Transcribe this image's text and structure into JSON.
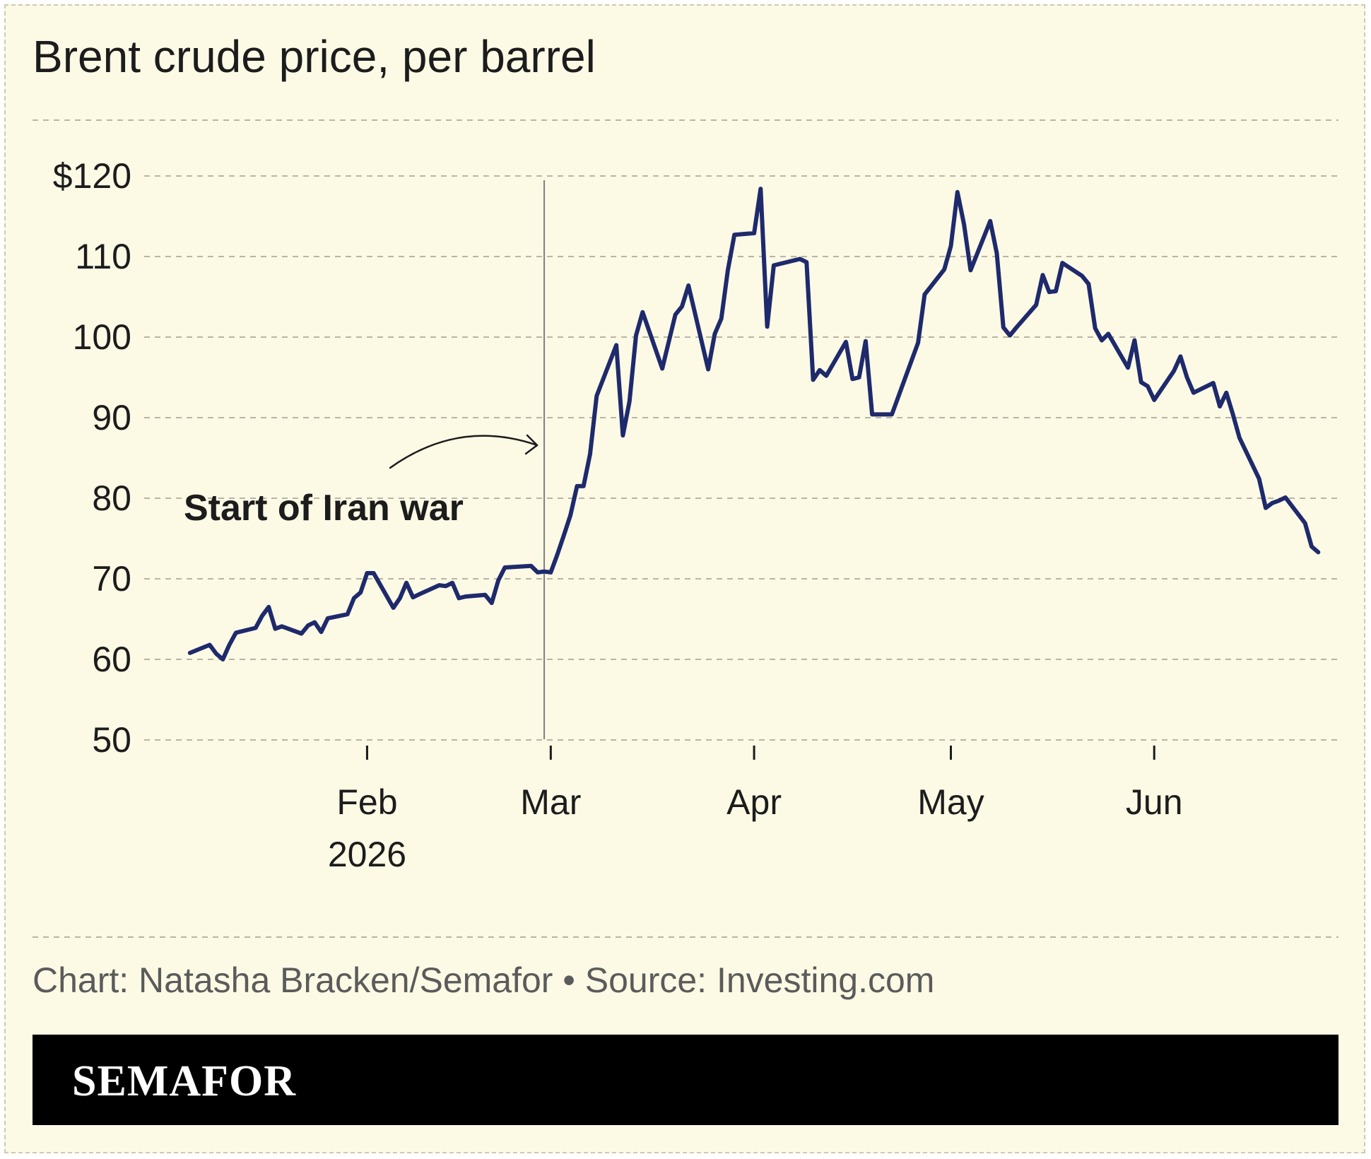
{
  "colors": {
    "background": "#fcf9e5",
    "line": "#1e2a6b",
    "gridline": "#b9b5a4",
    "text": "#1c1c1c",
    "credit_text": "#5b5b5b",
    "brand_bar": "#000000",
    "brand_text": "#ffffff"
  },
  "chart_data": {
    "type": "line",
    "title": "Brent crude price, per barrel",
    "xlabel": "",
    "ylabel": "",
    "ylim": [
      50,
      120
    ],
    "y_ticks": [
      {
        "value": 120,
        "label": "$120"
      },
      {
        "value": 110,
        "label": "110"
      },
      {
        "value": 100,
        "label": "100"
      },
      {
        "value": 90,
        "label": "90"
      },
      {
        "value": 80,
        "label": "80"
      },
      {
        "value": 70,
        "label": "70"
      },
      {
        "value": 60,
        "label": "60"
      },
      {
        "value": 50,
        "label": "50"
      }
    ],
    "x_ticks": [
      {
        "date": "2026-02-01",
        "label": "Feb",
        "sublabel": "2026"
      },
      {
        "date": "2026-03-01",
        "label": "Mar",
        "sublabel": ""
      },
      {
        "date": "2026-04-01",
        "label": "Apr",
        "sublabel": ""
      },
      {
        "date": "2026-05-01",
        "label": "May",
        "sublabel": ""
      },
      {
        "date": "2026-06-01",
        "label": "Jun",
        "sublabel": ""
      }
    ],
    "xlim": [
      "2026-01-02",
      "2026-06-25"
    ],
    "grid": "horizontal dashed",
    "legend": "none",
    "annotations": [
      {
        "text": "Start of Iran war",
        "date": "2026-02-28",
        "style": "vertical line with curved arrow"
      }
    ],
    "series": [
      {
        "color": "#1e2a6b",
        "points": [
          [
            "2026-01-05",
            60.8
          ],
          [
            "2026-01-08",
            61.8
          ],
          [
            "2026-01-09",
            60.7
          ],
          [
            "2026-01-10",
            60.0
          ],
          [
            "2026-01-11",
            61.8
          ],
          [
            "2026-01-12",
            63.3
          ],
          [
            "2026-01-15",
            63.9
          ],
          [
            "2026-01-16",
            65.4
          ],
          [
            "2026-01-17",
            66.5
          ],
          [
            "2026-01-18",
            63.8
          ],
          [
            "2026-01-19",
            64.1
          ],
          [
            "2026-01-22",
            63.2
          ],
          [
            "2026-01-23",
            64.2
          ],
          [
            "2026-01-24",
            64.6
          ],
          [
            "2026-01-25",
            63.4
          ],
          [
            "2026-01-26",
            65.1
          ],
          [
            "2026-01-29",
            65.6
          ],
          [
            "2026-01-30",
            67.6
          ],
          [
            "2026-01-31",
            68.3
          ],
          [
            "2026-02-01",
            70.7
          ],
          [
            "2026-02-02",
            70.7
          ],
          [
            "2026-02-05",
            66.4
          ],
          [
            "2026-02-06",
            67.6
          ],
          [
            "2026-02-07",
            69.5
          ],
          [
            "2026-02-08",
            67.7
          ],
          [
            "2026-02-09",
            68.1
          ],
          [
            "2026-02-12",
            69.2
          ],
          [
            "2026-02-13",
            69.1
          ],
          [
            "2026-02-14",
            69.5
          ],
          [
            "2026-02-15",
            67.6
          ],
          [
            "2026-02-16",
            67.8
          ],
          [
            "2026-02-19",
            68.0
          ],
          [
            "2026-02-20",
            67.0
          ],
          [
            "2026-02-21",
            69.8
          ],
          [
            "2026-02-22",
            71.4
          ],
          [
            "2026-02-26",
            71.6
          ],
          [
            "2026-02-27",
            70.8
          ],
          [
            "2026-02-28",
            70.9
          ],
          [
            "2026-03-01",
            70.8
          ],
          [
            "2026-03-02",
            73.0
          ],
          [
            "2026-03-03",
            75.4
          ],
          [
            "2026-03-04",
            77.9
          ],
          [
            "2026-03-05",
            81.5
          ],
          [
            "2026-03-06",
            81.5
          ],
          [
            "2026-03-07",
            85.5
          ],
          [
            "2026-03-08",
            92.7
          ],
          [
            "2026-03-11",
            99.0
          ],
          [
            "2026-03-12",
            87.8
          ],
          [
            "2026-03-13",
            92.0
          ],
          [
            "2026-03-14",
            100.2
          ],
          [
            "2026-03-15",
            103.1
          ],
          [
            "2026-03-18",
            96.1
          ],
          [
            "2026-03-20",
            102.8
          ],
          [
            "2026-03-21",
            103.8
          ],
          [
            "2026-03-22",
            106.4
          ],
          [
            "2026-03-25",
            96.0
          ],
          [
            "2026-03-26",
            100.4
          ],
          [
            "2026-03-27",
            102.3
          ],
          [
            "2026-03-28",
            108.3
          ],
          [
            "2026-03-29",
            112.7
          ],
          [
            "2026-04-01",
            112.9
          ],
          [
            "2026-04-02",
            118.4
          ],
          [
            "2026-04-03",
            101.3
          ],
          [
            "2026-04-04",
            108.9
          ],
          [
            "2026-04-08",
            109.7
          ],
          [
            "2026-04-09",
            109.3
          ],
          [
            "2026-04-10",
            94.7
          ],
          [
            "2026-04-11",
            95.9
          ],
          [
            "2026-04-12",
            95.2
          ],
          [
            "2026-04-15",
            99.4
          ],
          [
            "2026-04-16",
            94.8
          ],
          [
            "2026-04-17",
            95.0
          ],
          [
            "2026-04-18",
            99.5
          ],
          [
            "2026-04-19",
            90.4
          ],
          [
            "2026-04-22",
            90.4
          ],
          [
            "2026-04-26",
            99.3
          ],
          [
            "2026-04-27",
            105.3
          ],
          [
            "2026-04-30",
            108.4
          ],
          [
            "2026-05-01",
            111.3
          ],
          [
            "2026-05-02",
            118.0
          ],
          [
            "2026-05-03",
            114.0
          ],
          [
            "2026-05-04",
            108.3
          ],
          [
            "2026-05-07",
            114.4
          ],
          [
            "2026-05-08",
            110.4
          ],
          [
            "2026-05-09",
            101.2
          ],
          [
            "2026-05-10",
            100.2
          ],
          [
            "2026-05-11",
            101.2
          ],
          [
            "2026-05-14",
            104.0
          ],
          [
            "2026-05-15",
            107.7
          ],
          [
            "2026-05-16",
            105.6
          ],
          [
            "2026-05-17",
            105.7
          ],
          [
            "2026-05-18",
            109.2
          ],
          [
            "2026-05-21",
            107.6
          ],
          [
            "2026-05-22",
            106.6
          ],
          [
            "2026-05-23",
            101.1
          ],
          [
            "2026-05-24",
            99.6
          ],
          [
            "2026-05-25",
            100.4
          ],
          [
            "2026-05-28",
            96.2
          ],
          [
            "2026-05-29",
            99.6
          ],
          [
            "2026-05-30",
            94.4
          ],
          [
            "2026-05-31",
            93.9
          ],
          [
            "2026-06-01",
            92.2
          ],
          [
            "2026-06-04",
            95.8
          ],
          [
            "2026-06-05",
            97.6
          ],
          [
            "2026-06-06",
            95.0
          ],
          [
            "2026-06-07",
            93.1
          ],
          [
            "2026-06-10",
            94.3
          ],
          [
            "2026-06-11",
            91.4
          ],
          [
            "2026-06-12",
            93.1
          ],
          [
            "2026-06-13",
            90.4
          ],
          [
            "2026-06-14",
            87.5
          ],
          [
            "2026-06-17",
            82.4
          ],
          [
            "2026-06-18",
            78.8
          ],
          [
            "2026-06-19",
            79.4
          ],
          [
            "2026-06-20",
            79.7
          ],
          [
            "2026-06-21",
            80.1
          ],
          [
            "2026-06-24",
            76.9
          ],
          [
            "2026-06-25",
            74.0
          ],
          [
            "2026-06-26",
            73.3
          ]
        ]
      }
    ]
  },
  "credit": "Chart: Natasha Bracken/Semafor • Source: Investing.com",
  "brand": "SEMAFOR"
}
